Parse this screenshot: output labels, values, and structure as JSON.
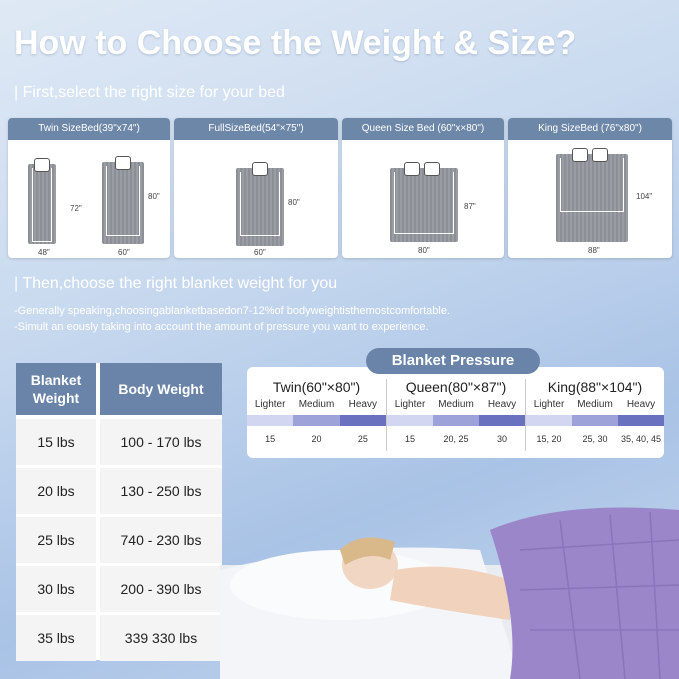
{
  "title": "How to Choose the Weight & Size?",
  "section1": "| First,select the right size for your bed",
  "beds": [
    {
      "label": "Twin SizeBed(39\"x74\")",
      "dims": [
        "72\"",
        "48\"",
        "80\"",
        "60\""
      ]
    },
    {
      "label": "FullSizeBed(54\"×75\")",
      "dims": [
        "80\"",
        "60\""
      ]
    },
    {
      "label": "Queen Size Bed  (60\"x×80\")",
      "dims": [
        "87\"",
        "80\""
      ]
    },
    {
      "label": "King SizeBed (76\"x80\")",
      "dims": [
        "104\"",
        "88\""
      ]
    }
  ],
  "section2": "| Then,choose the right blanket weight for you",
  "notes": [
    "-Generally speaking,choosingablanketbasedon7-12%of bodyweightisthemostcomfortable.",
    "-Simult an eously taking into account the amount of pressure you want to experience."
  ],
  "weight_table": {
    "headers": [
      "Blanket Weight",
      "Body Weight"
    ],
    "rows": [
      [
        "15 lbs",
        "100 - 170 lbs"
      ],
      [
        "20 lbs",
        "130 - 250 lbs"
      ],
      [
        "25 lbs",
        "740 - 230 lbs"
      ],
      [
        "30 lbs",
        "200 - 390 lbs"
      ],
      [
        "35 lbs",
        "339  330 lbs"
      ]
    ]
  },
  "pressure": {
    "title": "Blanket Pressure",
    "levels": [
      "Lighter",
      "Medium",
      "Heavy"
    ],
    "colors": [
      "#d3d6f0",
      "#9da3d8",
      "#6a72c0"
    ],
    "groups": [
      {
        "name": "Twin(60\"×80\")",
        "values": [
          "15",
          "20",
          "25"
        ]
      },
      {
        "name": "Queen(80\"×87\")",
        "values": [
          "15",
          "20, 25",
          "30"
        ]
      },
      {
        "name": "King(88\"×104\")",
        "values": [
          "15, 20",
          "25, 30",
          "35, 40, 45"
        ]
      }
    ]
  },
  "colors": {
    "header_blue": "#6984a8",
    "blanket_purple": "#9b86c9"
  }
}
